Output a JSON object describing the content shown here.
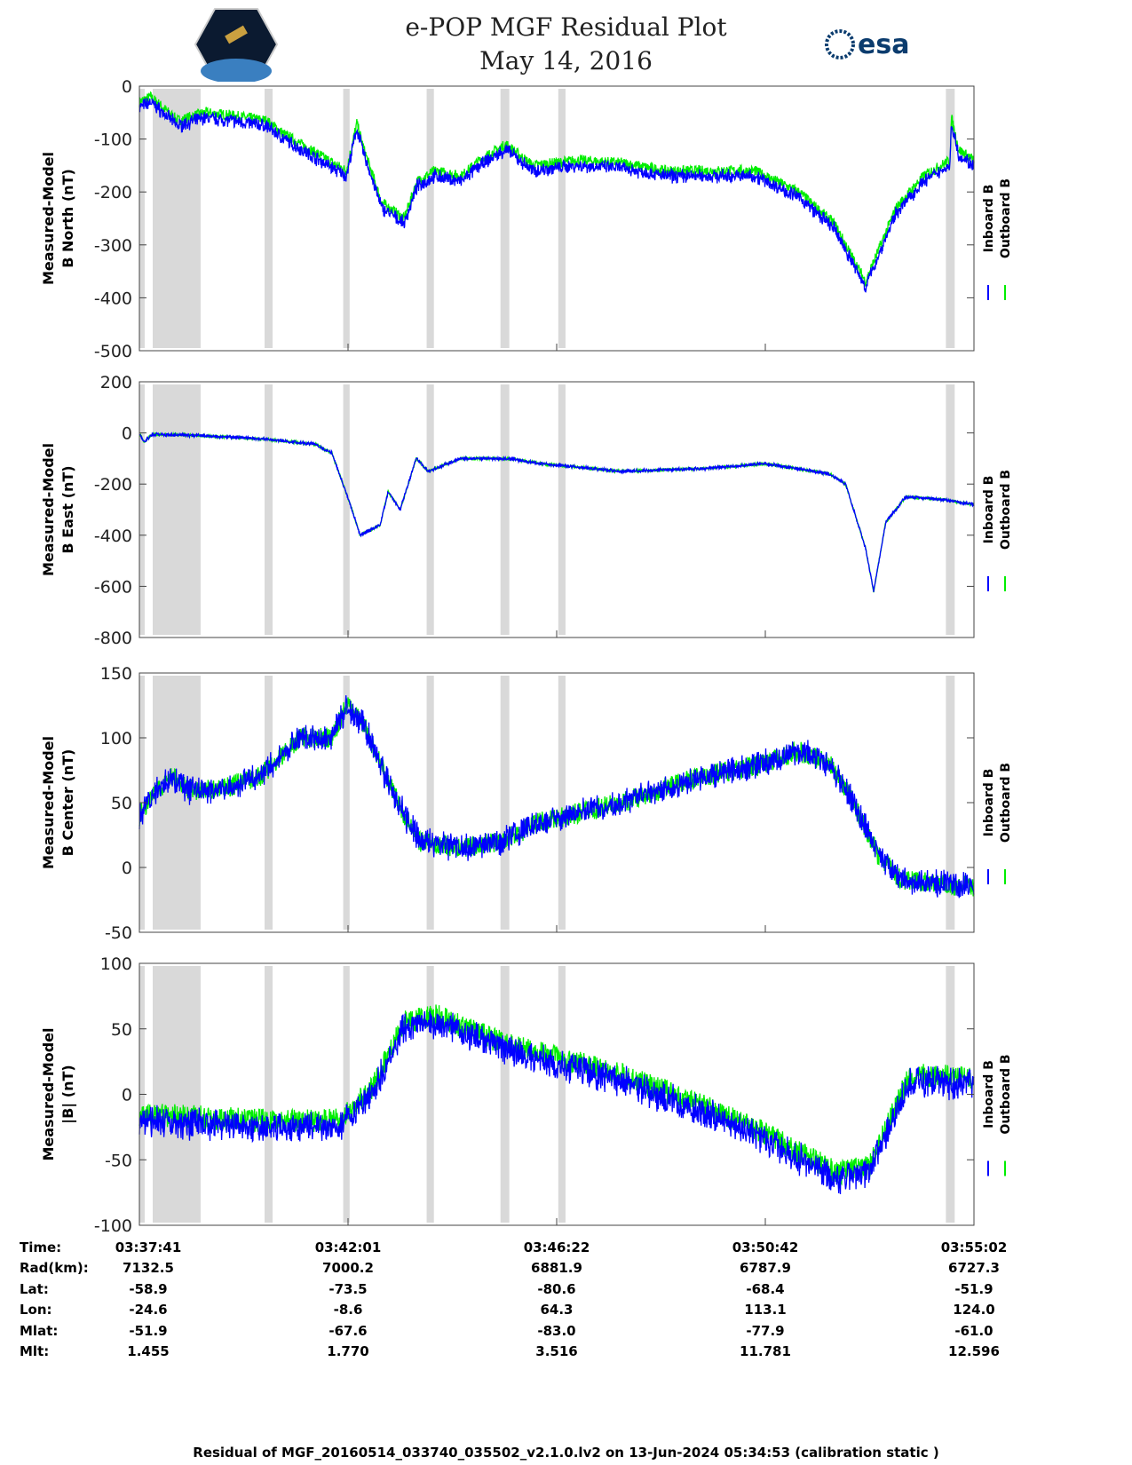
{
  "header": {
    "title": "e-POP MGF Residual Plot",
    "date": "May 14, 2016",
    "logo_left": "CASSIOPE",
    "logo_right": "esa"
  },
  "chart_data": [
    {
      "type": "line",
      "ylabel": [
        "Measured-Model",
        "B North (nT)"
      ],
      "ylim": [
        -500,
        0
      ],
      "yticks": [
        0,
        -100,
        -200,
        -300,
        -400,
        -500
      ],
      "series": [
        {
          "name": "Inboard B",
          "color": "#0000ff",
          "x": [
            0,
            14,
            48,
            81,
            114,
            158,
            180,
            213,
            258,
            271,
            280,
            302,
            330,
            346,
            368,
            401,
            424,
            457,
            490,
            545,
            601,
            656,
            711,
            767,
            822,
            866,
            905,
            921,
            943,
            977,
            1010,
            1012,
            1021,
            1040
          ],
          "y": [
            -40,
            -30,
            -75,
            -60,
            -65,
            -75,
            -100,
            -130,
            -170,
            -80,
            -130,
            -230,
            -260,
            -190,
            -170,
            -180,
            -150,
            -120,
            -160,
            -150,
            -155,
            -170,
            -170,
            -170,
            -210,
            -270,
            -380,
            -320,
            -240,
            -180,
            -150,
            -70,
            -130,
            -150
          ]
        },
        {
          "name": "Outboard B",
          "color": "#00ee00",
          "offset": 10
        }
      ]
    },
    {
      "type": "line",
      "ylabel": [
        "Measured-Model",
        "B East (nT)"
      ],
      "ylim": [
        -800,
        200
      ],
      "yticks": [
        200,
        0,
        -200,
        -400,
        -600,
        -800
      ],
      "series": [
        {
          "name": "Inboard B",
          "color": "#0000ff",
          "x": [
            0,
            6,
            16,
            76,
            160,
            220,
            240,
            265,
            275,
            300,
            310,
            325,
            345,
            360,
            400,
            460,
            500,
            600,
            700,
            780,
            860,
            880,
            905,
            915,
            930,
            955,
            1000,
            1040
          ],
          "y": [
            0,
            -35,
            -5,
            -10,
            -25,
            -45,
            -80,
            -300,
            -400,
            -360,
            -230,
            -300,
            -100,
            -150,
            -100,
            -100,
            -120,
            -150,
            -140,
            -120,
            -160,
            -200,
            -450,
            -620,
            -350,
            -250,
            -260,
            -280
          ]
        },
        {
          "name": "Outboard B",
          "color": "#00ee00",
          "offset": 0
        }
      ]
    },
    {
      "type": "line",
      "ylabel": [
        "Measured-Model",
        "B Center (nT)"
      ],
      "ylim": [
        -50,
        150
      ],
      "yticks": [
        150,
        100,
        50,
        0,
        -50
      ],
      "series": [
        {
          "name": "Inboard B",
          "color": "#0000ff",
          "x": [
            0,
            10,
            40,
            60,
            100,
            150,
            200,
            240,
            258,
            280,
            300,
            330,
            350,
            400,
            450,
            500,
            600,
            700,
            780,
            820,
            860,
            890,
            920,
            950,
            1040
          ],
          "y": [
            40,
            50,
            70,
            60,
            60,
            70,
            100,
            100,
            125,
            110,
            80,
            40,
            20,
            15,
            20,
            35,
            50,
            70,
            80,
            90,
            80,
            50,
            10,
            -10,
            -15
          ]
        },
        {
          "name": "Outboard B",
          "color": "#00ee00",
          "offset": 0
        }
      ]
    },
    {
      "type": "line",
      "ylabel": [
        "Measured-Model",
        "|B| (nT)"
      ],
      "ylim": [
        -100,
        100
      ],
      "yticks": [
        100,
        50,
        0,
        -50,
        -100
      ],
      "series": [
        {
          "name": "Inboard B",
          "color": "#0000ff",
          "x": [
            0,
            150,
            250,
            290,
            330,
            370,
            450,
            600,
            750,
            870,
            910,
            960,
            1040
          ],
          "y": [
            -20,
            -25,
            -25,
            0,
            50,
            55,
            35,
            10,
            -25,
            -65,
            -60,
            10,
            8
          ]
        },
        {
          "name": "Outboard B",
          "color": "#00ee00",
          "offset": 5
        }
      ]
    }
  ],
  "gaps_seconds": [
    [
      0,
      6.6
    ],
    [
      16.6,
      76.3
    ],
    [
      156,
      166
    ],
    [
      254,
      262
    ],
    [
      358,
      367
    ],
    [
      450,
      461
    ],
    [
      522,
      531
    ],
    [
      1005,
      1016
    ]
  ],
  "xrange_seconds": [
    0,
    1040
  ],
  "legend": {
    "inboard": "Inboard B",
    "outboard": "Outboard B",
    "placement": "right"
  },
  "table": {
    "labels": [
      "Time:",
      "Rad(km):",
      "Lat:",
      "Lon:",
      "Mlat:",
      "Mlt:"
    ],
    "columns": [
      [
        "03:37:41",
        "7132.5",
        "-58.9",
        "-24.6",
        "-51.9",
        "1.455"
      ],
      [
        "03:42:01",
        "7000.2",
        "-73.5",
        "-8.6",
        "-67.6",
        "1.770"
      ],
      [
        "03:46:22",
        "6881.9",
        "-80.6",
        "64.3",
        "-83.0",
        "3.516"
      ],
      [
        "03:50:42",
        "6787.9",
        "-68.4",
        "113.1",
        "-77.9",
        "11.781"
      ],
      [
        "03:55:02",
        "6727.3",
        "-51.9",
        "124.0",
        "-61.0",
        "12.596"
      ]
    ]
  },
  "footer": "Residual of MGF_20160514_033740_035502_v2.1.0.lv2 on 13-Jun-2024 05:34:53 (calibration static )"
}
